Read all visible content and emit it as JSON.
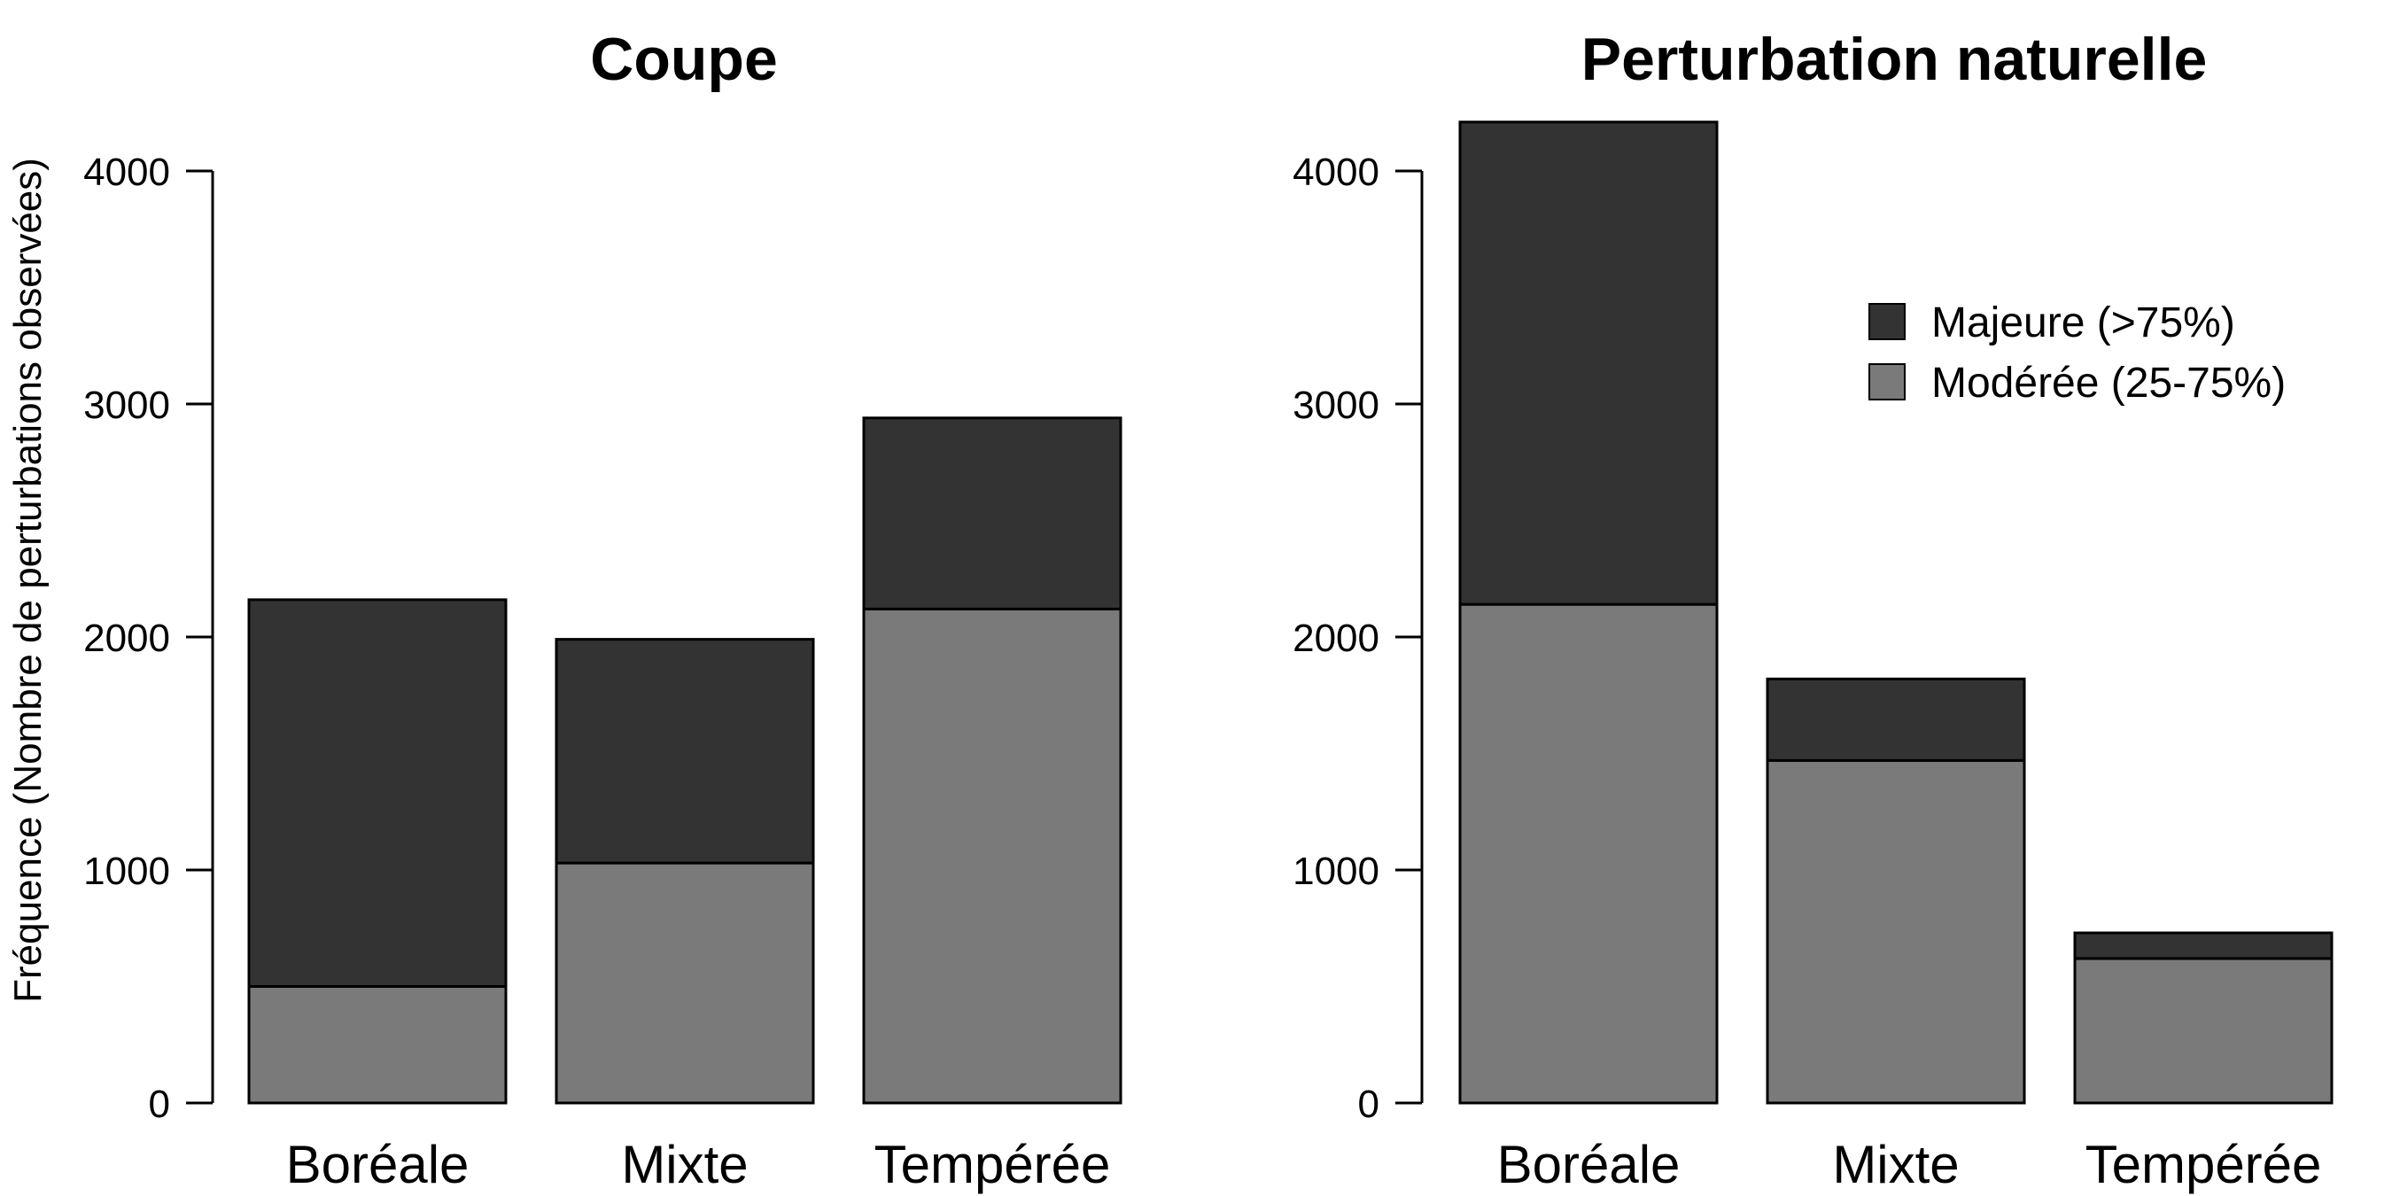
{
  "figure": {
    "ylabel": "Fréquence (Nombre de perturbations observées)"
  },
  "legend": {
    "placement": "top-right of right panel",
    "items": [
      {
        "label": "Majeure (>75%)",
        "color": "#333333"
      },
      {
        "label": "Modérée (25-75%)",
        "color": "#7a7a7a"
      }
    ]
  },
  "chart_data": [
    {
      "type": "bar",
      "stacked": true,
      "title": "Coupe",
      "categories": [
        "Boréale",
        "Mixte",
        "Tempérée"
      ],
      "ylabel": "Fréquence (Nombre de perturbations observées)",
      "ylim": [
        0,
        4000
      ],
      "yticks": [
        "0",
        "1000",
        "2000",
        "3000",
        "4000"
      ],
      "grid": false,
      "series": [
        {
          "name": "Modérée (25-75%)",
          "color": "#7a7a7a",
          "values": [
            500,
            1030,
            2120
          ]
        },
        {
          "name": "Majeure (>75%)",
          "color": "#333333",
          "values": [
            1660,
            960,
            820
          ]
        }
      ]
    },
    {
      "type": "bar",
      "stacked": true,
      "title": "Perturbation naturelle",
      "categories": [
        "Boréale",
        "Mixte",
        "Tempérée"
      ],
      "ylabel": "",
      "ylim": [
        0,
        4000
      ],
      "yticks": [
        "0",
        "1000",
        "2000",
        "3000",
        "4000"
      ],
      "grid": false,
      "series": [
        {
          "name": "Modérée (25-75%)",
          "color": "#7a7a7a",
          "values": [
            2140,
            1470,
            620
          ]
        },
        {
          "name": "Majeure (>75%)",
          "color": "#333333",
          "values": [
            2070,
            350,
            110
          ]
        }
      ]
    }
  ]
}
